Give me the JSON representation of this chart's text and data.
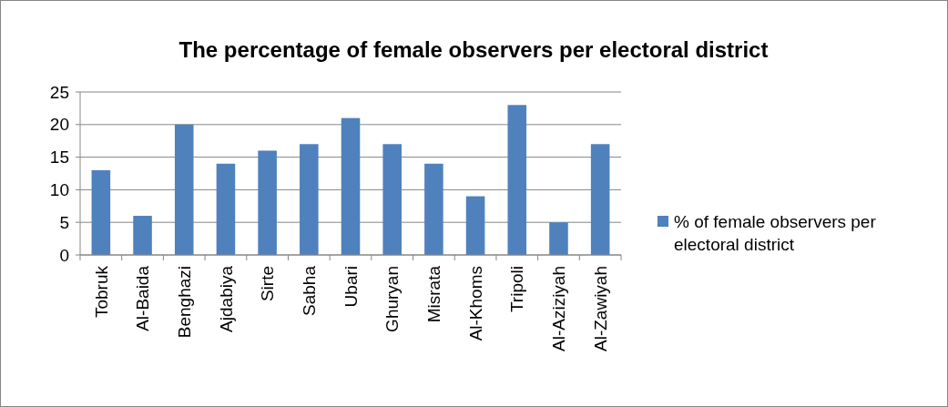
{
  "chart_data": {
    "type": "bar",
    "title": "The percentage of female observers per electoral district",
    "categories": [
      "Tobruk",
      "Al-Baida",
      "Benghazi",
      "Ajdabiya",
      "Sirte",
      "Sabha",
      "Ubari",
      "Ghuryan",
      "Misrata",
      "Al-Khoms",
      "Tripoli",
      "Al-Aziziyah",
      "Al-Zawiyah"
    ],
    "series": [
      {
        "name": "% of female observers per electoral district",
        "color": "#4f81bd",
        "values": [
          13,
          6,
          20,
          14,
          16,
          17,
          21,
          17,
          14,
          9,
          23,
          5,
          17
        ]
      }
    ],
    "ylim": [
      0,
      25
    ],
    "yticks": [
      0,
      5,
      10,
      15,
      20,
      25
    ],
    "grid": "y",
    "legend": "right"
  }
}
